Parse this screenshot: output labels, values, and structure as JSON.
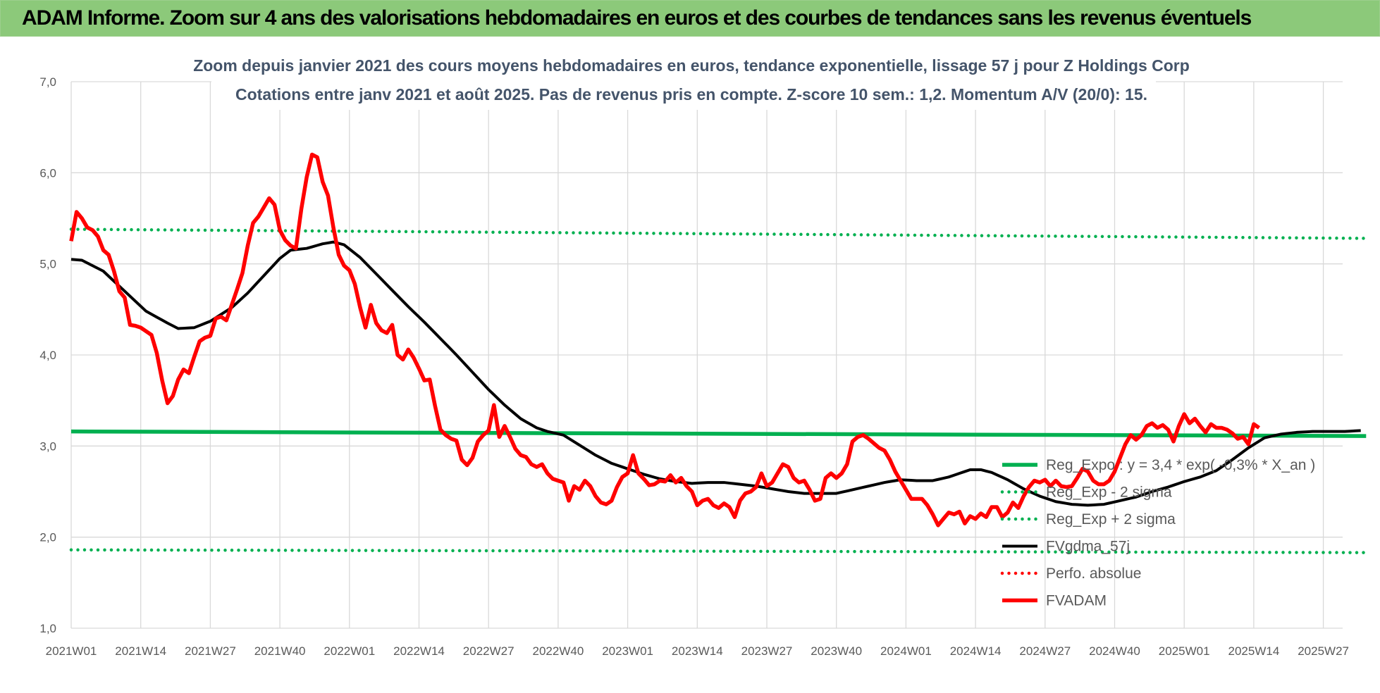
{
  "header": {
    "banner": "ADAM Informe. Zoom sur 4 ans des valorisations hebdomadaires en euros et des courbes de tendances sans les revenus éventuels"
  },
  "chart_data": {
    "type": "line",
    "title": "Zoom depuis janvier 2021 des cours moyens hebdomadaires en euros, tendance exponentielle, lissage 57 j pour Z Holdings Corp",
    "subtitle": "Cotations entre janv 2021 et août 2025.  Pas de revenus pris en compte. Z-score 10 sem.: 1,2. Momentum A/V (20/0): 15.",
    "xlabel": "",
    "ylabel": "",
    "ylim": [
      1.0,
      7.0
    ],
    "y_ticks": [
      "1,0",
      "2,0",
      "3,0",
      "4,0",
      "5,0",
      "6,0",
      "7,0"
    ],
    "x_ticks": [
      "2021W01",
      "2021W14",
      "2021W27",
      "2021W40",
      "2022W01",
      "2022W14",
      "2022W27",
      "2022W40",
      "2023W01",
      "2023W14",
      "2023W27",
      "2023W40",
      "2024W01",
      "2024W14",
      "2024W27",
      "2024W40",
      "2025W01",
      "2025W14",
      "2025W27"
    ],
    "grid": true,
    "legend_position": "bottom-right inside plot",
    "series": [
      {
        "name": "Reg_Expo : y = 3,4 * exp( -0,3% *  X_an )",
        "color": "#00b050",
        "style": "solid",
        "start": 3.16,
        "end": 3.11
      },
      {
        "name": "Reg_Exp - 2 sigma",
        "color": "#00b050",
        "style": "dotted",
        "start": 1.86,
        "end": 1.83
      },
      {
        "name": "Reg_Exp + 2 sigma",
        "color": "#00b050",
        "style": "dotted",
        "start": 5.38,
        "end": 5.28
      },
      {
        "name": "FVgdma_57j",
        "color": "#000000",
        "style": "solid",
        "keypoints": [
          [
            0,
            5.05
          ],
          [
            2,
            5.04
          ],
          [
            6,
            4.92
          ],
          [
            10,
            4.7
          ],
          [
            14,
            4.48
          ],
          [
            18,
            4.35
          ],
          [
            20,
            4.29
          ],
          [
            23,
            4.3
          ],
          [
            26,
            4.37
          ],
          [
            30,
            4.52
          ],
          [
            33,
            4.68
          ],
          [
            36,
            4.87
          ],
          [
            39,
            5.06
          ],
          [
            41,
            5.15
          ],
          [
            44,
            5.17
          ],
          [
            47,
            5.22
          ],
          [
            49,
            5.24
          ],
          [
            51,
            5.21
          ],
          [
            54,
            5.07
          ],
          [
            57,
            4.89
          ],
          [
            60,
            4.71
          ],
          [
            63,
            4.53
          ],
          [
            66,
            4.36
          ],
          [
            69,
            4.18
          ],
          [
            72,
            4.0
          ],
          [
            75,
            3.81
          ],
          [
            78,
            3.62
          ],
          [
            81,
            3.45
          ],
          [
            84,
            3.3
          ],
          [
            87,
            3.2
          ],
          [
            89,
            3.16
          ],
          [
            92,
            3.12
          ],
          [
            95,
            3.01
          ],
          [
            98,
            2.9
          ],
          [
            101,
            2.81
          ],
          [
            104,
            2.75
          ],
          [
            107,
            2.69
          ],
          [
            110,
            2.64
          ],
          [
            113,
            2.61
          ],
          [
            116,
            2.59
          ],
          [
            119,
            2.6
          ],
          [
            122,
            2.6
          ],
          [
            125,
            2.58
          ],
          [
            128,
            2.56
          ],
          [
            131,
            2.53
          ],
          [
            134,
            2.5
          ],
          [
            137,
            2.48
          ],
          [
            140,
            2.48
          ],
          [
            143,
            2.48
          ],
          [
            146,
            2.52
          ],
          [
            149,
            2.56
          ],
          [
            152,
            2.6
          ],
          [
            155,
            2.63
          ],
          [
            158,
            2.62
          ],
          [
            161,
            2.62
          ],
          [
            164,
            2.66
          ],
          [
            166,
            2.7
          ],
          [
            168,
            2.74
          ],
          [
            170,
            2.74
          ],
          [
            172,
            2.71
          ],
          [
            175,
            2.63
          ],
          [
            178,
            2.53
          ],
          [
            181,
            2.45
          ],
          [
            184,
            2.39
          ],
          [
            187,
            2.36
          ],
          [
            190,
            2.35
          ],
          [
            193,
            2.36
          ],
          [
            196,
            2.4
          ],
          [
            199,
            2.44
          ],
          [
            202,
            2.5
          ],
          [
            205,
            2.55
          ],
          [
            208,
            2.61
          ],
          [
            211,
            2.66
          ],
          [
            214,
            2.73
          ],
          [
            217,
            2.85
          ],
          [
            220,
            2.98
          ],
          [
            223,
            3.09
          ],
          [
            226,
            3.13
          ],
          [
            229,
            3.15
          ],
          [
            232,
            3.16
          ],
          [
            235,
            3.16
          ],
          [
            238,
            3.16
          ],
          [
            241,
            3.17
          ]
        ]
      },
      {
        "name": "Perfo. absolue",
        "color": "#ff0000",
        "style": "dotted",
        "values": []
      },
      {
        "name": "FVADAM",
        "color": "#ff0000",
        "style": "solid",
        "keypoints": [
          [
            0,
            5.25
          ],
          [
            1,
            5.57
          ],
          [
            2,
            5.5
          ],
          [
            3,
            5.4
          ],
          [
            4,
            5.37
          ],
          [
            5,
            5.3
          ],
          [
            6,
            5.15
          ],
          [
            7,
            5.1
          ],
          [
            8,
            4.92
          ],
          [
            9,
            4.7
          ],
          [
            10,
            4.63
          ],
          [
            11,
            4.33
          ],
          [
            12,
            4.32
          ],
          [
            13,
            4.3
          ],
          [
            14,
            4.26
          ],
          [
            15,
            4.22
          ],
          [
            16,
            4.02
          ],
          [
            17,
            3.72
          ],
          [
            18,
            3.47
          ],
          [
            19,
            3.55
          ],
          [
            20,
            3.73
          ],
          [
            21,
            3.84
          ],
          [
            22,
            3.8
          ],
          [
            23,
            3.98
          ],
          [
            24,
            4.15
          ],
          [
            25,
            4.19
          ],
          [
            26,
            4.21
          ],
          [
            27,
            4.4
          ],
          [
            28,
            4.42
          ],
          [
            29,
            4.38
          ],
          [
            30,
            4.55
          ],
          [
            31,
            4.72
          ],
          [
            32,
            4.9
          ],
          [
            33,
            5.2
          ],
          [
            34,
            5.45
          ],
          [
            35,
            5.52
          ],
          [
            36,
            5.62
          ],
          [
            37,
            5.72
          ],
          [
            38,
            5.65
          ],
          [
            39,
            5.37
          ],
          [
            40,
            5.26
          ],
          [
            41,
            5.2
          ],
          [
            42,
            5.17
          ],
          [
            43,
            5.6
          ],
          [
            44,
            5.95
          ],
          [
            45,
            6.2
          ],
          [
            46,
            6.17
          ],
          [
            47,
            5.9
          ],
          [
            48,
            5.75
          ],
          [
            49,
            5.4
          ],
          [
            50,
            5.1
          ],
          [
            51,
            4.98
          ],
          [
            52,
            4.93
          ],
          [
            53,
            4.78
          ],
          [
            54,
            4.52
          ],
          [
            55,
            4.3
          ],
          [
            56,
            4.55
          ],
          [
            57,
            4.35
          ],
          [
            58,
            4.27
          ],
          [
            59,
            4.24
          ],
          [
            60,
            4.33
          ],
          [
            61,
            4.0
          ],
          [
            62,
            3.95
          ],
          [
            63,
            4.06
          ],
          [
            64,
            3.97
          ],
          [
            65,
            3.85
          ],
          [
            66,
            3.72
          ],
          [
            67,
            3.73
          ],
          [
            68,
            3.44
          ],
          [
            69,
            3.18
          ],
          [
            70,
            3.12
          ],
          [
            71,
            3.08
          ],
          [
            72,
            3.06
          ],
          [
            73,
            2.85
          ],
          [
            74,
            2.79
          ],
          [
            75,
            2.87
          ],
          [
            76,
            3.05
          ],
          [
            77,
            3.12
          ],
          [
            78,
            3.17
          ],
          [
            79,
            3.45
          ],
          [
            80,
            3.1
          ],
          [
            81,
            3.22
          ],
          [
            82,
            3.1
          ],
          [
            83,
            2.97
          ],
          [
            84,
            2.9
          ],
          [
            85,
            2.88
          ],
          [
            86,
            2.8
          ],
          [
            87,
            2.77
          ],
          [
            88,
            2.8
          ],
          [
            89,
            2.7
          ],
          [
            90,
            2.64
          ],
          [
            91,
            2.62
          ],
          [
            92,
            2.6
          ],
          [
            93,
            2.4
          ],
          [
            94,
            2.56
          ],
          [
            95,
            2.52
          ],
          [
            96,
            2.62
          ],
          [
            97,
            2.56
          ],
          [
            98,
            2.45
          ],
          [
            99,
            2.38
          ],
          [
            100,
            2.36
          ],
          [
            101,
            2.4
          ],
          [
            102,
            2.55
          ],
          [
            103,
            2.66
          ],
          [
            104,
            2.7
          ],
          [
            105,
            2.9
          ],
          [
            106,
            2.7
          ],
          [
            107,
            2.64
          ],
          [
            108,
            2.57
          ],
          [
            109,
            2.58
          ],
          [
            110,
            2.62
          ],
          [
            111,
            2.61
          ],
          [
            112,
            2.68
          ],
          [
            113,
            2.6
          ],
          [
            114,
            2.65
          ],
          [
            115,
            2.56
          ],
          [
            116,
            2.5
          ],
          [
            117,
            2.35
          ],
          [
            118,
            2.4
          ],
          [
            119,
            2.42
          ],
          [
            120,
            2.35
          ],
          [
            121,
            2.32
          ],
          [
            122,
            2.37
          ],
          [
            123,
            2.33
          ],
          [
            124,
            2.22
          ],
          [
            125,
            2.4
          ],
          [
            126,
            2.48
          ],
          [
            127,
            2.5
          ],
          [
            128,
            2.55
          ],
          [
            129,
            2.7
          ],
          [
            130,
            2.56
          ],
          [
            131,
            2.6
          ],
          [
            132,
            2.7
          ],
          [
            133,
            2.8
          ],
          [
            134,
            2.77
          ],
          [
            135,
            2.65
          ],
          [
            136,
            2.6
          ],
          [
            137,
            2.62
          ],
          [
            138,
            2.52
          ],
          [
            139,
            2.4
          ],
          [
            140,
            2.42
          ],
          [
            141,
            2.65
          ],
          [
            142,
            2.7
          ],
          [
            143,
            2.65
          ],
          [
            144,
            2.7
          ],
          [
            145,
            2.8
          ],
          [
            146,
            3.05
          ],
          [
            147,
            3.1
          ],
          [
            148,
            3.12
          ],
          [
            149,
            3.08
          ],
          [
            150,
            3.03
          ],
          [
            151,
            2.98
          ],
          [
            152,
            2.95
          ],
          [
            153,
            2.85
          ],
          [
            154,
            2.72
          ],
          [
            155,
            2.62
          ],
          [
            156,
            2.52
          ],
          [
            157,
            2.42
          ],
          [
            158,
            2.42
          ],
          [
            159,
            2.42
          ],
          [
            160,
            2.35
          ],
          [
            161,
            2.25
          ],
          [
            162,
            2.13
          ],
          [
            163,
            2.2
          ],
          [
            164,
            2.27
          ],
          [
            165,
            2.25
          ],
          [
            166,
            2.28
          ],
          [
            167,
            2.15
          ],
          [
            168,
            2.23
          ],
          [
            169,
            2.2
          ],
          [
            170,
            2.26
          ],
          [
            171,
            2.22
          ],
          [
            172,
            2.33
          ],
          [
            173,
            2.33
          ],
          [
            174,
            2.22
          ],
          [
            175,
            2.27
          ],
          [
            176,
            2.38
          ],
          [
            177,
            2.32
          ],
          [
            178,
            2.45
          ],
          [
            179,
            2.55
          ],
          [
            180,
            2.62
          ],
          [
            181,
            2.6
          ],
          [
            182,
            2.63
          ],
          [
            183,
            2.56
          ],
          [
            184,
            2.62
          ],
          [
            185,
            2.56
          ],
          [
            186,
            2.55
          ],
          [
            187,
            2.56
          ],
          [
            188,
            2.65
          ],
          [
            189,
            2.75
          ],
          [
            190,
            2.72
          ],
          [
            191,
            2.62
          ],
          [
            192,
            2.58
          ],
          [
            193,
            2.58
          ],
          [
            194,
            2.62
          ],
          [
            195,
            2.72
          ],
          [
            196,
            2.87
          ],
          [
            197,
            3.02
          ],
          [
            198,
            3.12
          ],
          [
            199,
            3.07
          ],
          [
            200,
            3.12
          ],
          [
            201,
            3.22
          ],
          [
            202,
            3.25
          ],
          [
            203,
            3.2
          ],
          [
            204,
            3.23
          ],
          [
            205,
            3.18
          ],
          [
            206,
            3.05
          ],
          [
            207,
            3.22
          ],
          [
            208,
            3.35
          ],
          [
            209,
            3.25
          ],
          [
            210,
            3.3
          ],
          [
            211,
            3.22
          ],
          [
            212,
            3.15
          ],
          [
            213,
            3.24
          ],
          [
            214,
            3.2
          ],
          [
            215,
            3.2
          ],
          [
            216,
            3.18
          ],
          [
            217,
            3.14
          ],
          [
            218,
            3.08
          ],
          [
            219,
            3.1
          ],
          [
            220,
            3.02
          ],
          [
            221,
            3.24
          ],
          [
            222,
            3.2
          ]
        ]
      }
    ]
  }
}
